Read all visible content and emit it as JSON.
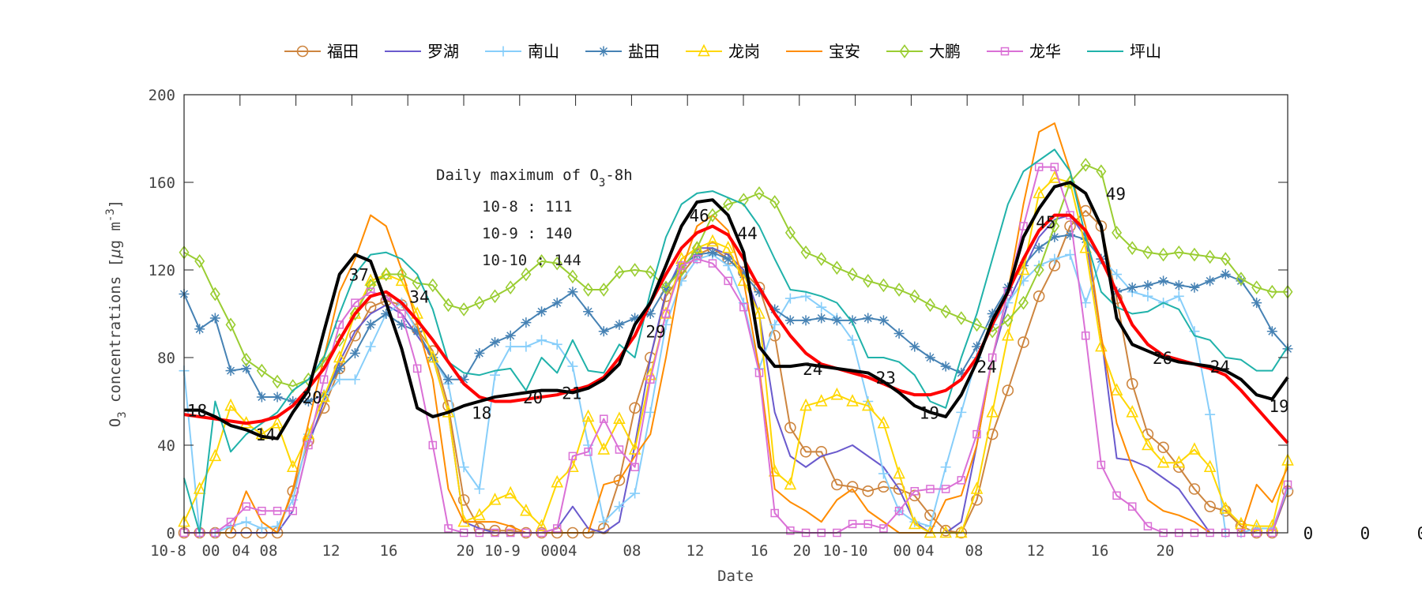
{
  "chart_data": {
    "type": "line",
    "xlabel": "Date",
    "ylabel": {
      "main": "O",
      "sub": "3",
      "rest": " concentrations [",
      "mu": "μ",
      "unit": "g m",
      "sup": "-3",
      "close": "]"
    },
    "ylim": [
      0,
      200
    ],
    "yticks": [
      "0",
      "40",
      "80",
      "120",
      "160",
      "200"
    ],
    "xtick_labels": [
      "10-8",
      "00",
      "04",
      "08",
      "12",
      "16",
      "20",
      "10-9",
      "00",
      "04",
      "08",
      "12",
      "16",
      "20",
      "10-10",
      "00",
      "04",
      "08",
      "12",
      "16",
      "20"
    ],
    "extra_right_labels": [
      "0",
      "0",
      "0"
    ],
    "x_start": "10-8 00",
    "x_step_hours": 1,
    "grid": false,
    "legend_placement": "top-outside",
    "annotation": {
      "title_pre": "Daily maximum of O",
      "title_sub": "3",
      "title_post": "-8h",
      "lines": [
        "10-8 : 111",
        "10-9 : 140",
        "10-10 : 144"
      ]
    },
    "series": [
      {
        "name": "福田",
        "color": "#cd853f",
        "marker": "circle",
        "values": [
          0,
          0,
          0,
          0,
          0,
          0,
          0,
          19,
          42,
          57,
          75,
          90,
          103,
          106,
          104,
          93,
          83,
          58,
          15,
          2,
          1,
          1,
          0,
          0,
          0,
          0,
          0,
          2,
          24,
          57,
          80,
          108,
          118,
          127,
          130,
          125,
          119,
          112,
          90,
          48,
          37,
          37,
          22,
          21,
          19,
          21,
          20,
          17,
          8,
          1,
          0,
          15,
          45,
          65,
          87,
          108,
          122,
          140,
          147,
          140,
          107,
          68,
          45,
          39,
          30,
          20,
          12,
          10,
          3,
          0,
          0,
          19
        ]
      },
      {
        "name": "罗湖",
        "color": "#6a5acd",
        "marker": "none",
        "values": [
          0,
          0,
          0,
          0,
          0,
          0,
          0,
          10,
          40,
          60,
          78,
          92,
          100,
          104,
          100,
          90,
          80,
          55,
          5,
          2,
          0,
          0,
          0,
          0,
          2,
          12,
          2,
          0,
          5,
          40,
          80,
          110,
          125,
          130,
          130,
          127,
          120,
          100,
          55,
          35,
          30,
          35,
          37,
          40,
          35,
          30,
          20,
          5,
          0,
          0,
          5,
          40,
          80,
          105,
          120,
          135,
          143,
          145,
          135,
          90,
          34,
          33,
          30,
          25,
          20,
          10,
          0,
          0,
          0,
          0,
          0,
          20
        ]
      },
      {
        "name": "南山",
        "color": "#87cefa",
        "marker": "plus",
        "values": [
          74,
          0,
          0,
          3,
          5,
          2,
          3,
          15,
          45,
          62,
          70,
          70,
          85,
          100,
          105,
          92,
          80,
          68,
          30,
          20,
          72,
          85,
          85,
          88,
          86,
          76,
          40,
          5,
          12,
          18,
          55,
          95,
          115,
          125,
          127,
          122,
          105,
          75,
          95,
          107,
          108,
          103,
          98,
          88,
          60,
          27,
          10,
          5,
          3,
          30,
          55,
          80,
          95,
          105,
          115,
          122,
          125,
          127,
          105,
          125,
          118,
          110,
          108,
          105,
          108,
          92,
          54,
          0,
          0,
          2,
          2,
          20
        ]
      },
      {
        "name": "盐田",
        "color": "#4682b4",
        "marker": "asterisk",
        "values": [
          109,
          93,
          98,
          74,
          75,
          62,
          62,
          60,
          60,
          63,
          75,
          82,
          95,
          100,
          95,
          92,
          80,
          70,
          70,
          82,
          87,
          90,
          96,
          101,
          105,
          110,
          101,
          92,
          95,
          98,
          100,
          112,
          122,
          127,
          128,
          125,
          118,
          110,
          102,
          97,
          97,
          98,
          97,
          97,
          98,
          97,
          91,
          85,
          80,
          76,
          73,
          85,
          100,
          112,
          122,
          130,
          135,
          136,
          134,
          125,
          110,
          112,
          113,
          115,
          113,
          112,
          115,
          118,
          115,
          105,
          92,
          84
        ]
      },
      {
        "name": "龙岗",
        "color": "#ffd700",
        "marker": "triangle",
        "values": [
          5,
          20,
          35,
          58,
          50,
          45,
          50,
          30,
          45,
          62,
          80,
          100,
          115,
          118,
          115,
          100,
          80,
          55,
          5,
          8,
          15,
          18,
          10,
          3,
          23,
          30,
          53,
          38,
          52,
          38,
          72,
          100,
          125,
          130,
          133,
          130,
          115,
          100,
          28,
          22,
          58,
          60,
          63,
          60,
          58,
          50,
          27,
          4,
          0,
          0,
          0,
          20,
          55,
          90,
          120,
          155,
          162,
          160,
          130,
          85,
          65,
          55,
          40,
          32,
          32,
          38,
          30,
          11,
          4,
          3,
          3,
          33
        ]
      },
      {
        "name": "宝安",
        "color": "#ff8c00",
        "marker": "none",
        "values": [
          0,
          0,
          0,
          0,
          19,
          5,
          0,
          20,
          50,
          80,
          110,
          125,
          145,
          140,
          120,
          95,
          70,
          20,
          5,
          5,
          5,
          3,
          0,
          0,
          0,
          0,
          0,
          22,
          24,
          35,
          45,
          80,
          120,
          140,
          145,
          138,
          115,
          75,
          20,
          14,
          10,
          5,
          15,
          20,
          10,
          5,
          0,
          0,
          0,
          15,
          17,
          40,
          80,
          110,
          150,
          183,
          187,
          165,
          140,
          90,
          50,
          30,
          15,
          10,
          8,
          5,
          0,
          0,
          0,
          22,
          14,
          30
        ]
      },
      {
        "name": "大鹏",
        "color": "#9acd32",
        "marker": "diamond",
        "values": [
          128,
          124,
          109,
          95,
          79,
          74,
          69,
          67,
          70,
          78,
          88,
          100,
          113,
          118,
          118,
          114,
          113,
          104,
          102,
          105,
          108,
          112,
          118,
          124,
          123,
          117,
          111,
          111,
          119,
          120,
          119,
          112,
          120,
          130,
          145,
          150,
          152,
          155,
          151,
          137,
          128,
          125,
          121,
          118,
          115,
          113,
          111,
          108,
          104,
          101,
          98,
          95,
          92,
          97,
          105,
          120,
          140,
          160,
          168,
          165,
          137,
          130,
          128,
          127,
          128,
          127,
          126,
          125,
          116,
          112,
          110,
          110
        ]
      },
      {
        "name": "龙华",
        "color": "#da70d6",
        "marker": "square",
        "values": [
          0,
          0,
          0,
          5,
          12,
          10,
          10,
          10,
          40,
          70,
          95,
          105,
          110,
          108,
          100,
          75,
          40,
          2,
          0,
          0,
          0,
          0,
          0,
          0,
          2,
          35,
          37,
          52,
          38,
          30,
          70,
          100,
          122,
          125,
          123,
          115,
          103,
          73,
          9,
          1,
          0,
          0,
          0,
          4,
          4,
          2,
          10,
          19,
          20,
          20,
          24,
          45,
          80,
          110,
          140,
          167,
          167,
          145,
          90,
          31,
          17,
          12,
          3,
          0,
          0,
          0,
          0,
          0,
          0,
          0,
          0,
          22
        ]
      },
      {
        "name": "坪山",
        "color": "#20b2aa",
        "marker": "none",
        "values": [
          25,
          0,
          60,
          37,
          45,
          50,
          55,
          65,
          70,
          80,
          100,
          118,
          127,
          128,
          125,
          118,
          102,
          78,
          73,
          72,
          74,
          75,
          65,
          80,
          73,
          88,
          74,
          73,
          86,
          80,
          110,
          135,
          150,
          155,
          156,
          153,
          150,
          140,
          125,
          111,
          110,
          108,
          105,
          96,
          80,
          80,
          78,
          72,
          60,
          57,
          80,
          100,
          125,
          150,
          165,
          170,
          175,
          165,
          135,
          110,
          103,
          100,
          101,
          105,
          102,
          90,
          88,
          80,
          79,
          74,
          74,
          85
        ]
      },
      {
        "color": "#ff0000",
        "marker": "none",
        "values": [
          54,
          53,
          52,
          51,
          50,
          51,
          53,
          58,
          66,
          75,
          88,
          100,
          108,
          110,
          105,
          97,
          88,
          78,
          68,
          62,
          60,
          60,
          61,
          62,
          63,
          65,
          67,
          71,
          80,
          90,
          105,
          118,
          130,
          137,
          140,
          136,
          125,
          112,
          100,
          90,
          82,
          77,
          75,
          73,
          71,
          68,
          65,
          63,
          63,
          65,
          70,
          80,
          95,
          110,
          125,
          138,
          145,
          145,
          138,
          125,
          110,
          95,
          86,
          81,
          79,
          77,
          75,
          72,
          65,
          57,
          49,
          41
        ]
      },
      {
        "color": "#000000",
        "marker": "none",
        "values": [
          56,
          56,
          53,
          49,
          47,
          44,
          43,
          55,
          65,
          92,
          118,
          127,
          124,
          105,
          84,
          57,
          53,
          55,
          58,
          60,
          62,
          63,
          64,
          65,
          65,
          64,
          66,
          70,
          77,
          95,
          105,
          122,
          140,
          151,
          152,
          145,
          128,
          85,
          76,
          76,
          77,
          76,
          75,
          74,
          73,
          69,
          64,
          58,
          55,
          53,
          63,
          78,
          97,
          110,
          135,
          148,
          158,
          160,
          155,
          140,
          98,
          86,
          83,
          80,
          78,
          77,
          76,
          74,
          70,
          63,
          61,
          71
        ]
      }
    ],
    "point_labels": [
      {
        "text": "18",
        "x": 0.2,
        "y": 56
      },
      {
        "text": "14",
        "x": 4.6,
        "y": 45
      },
      {
        "text": "20",
        "x": 7.6,
        "y": 62
      },
      {
        "text": "37",
        "x": 10.6,
        "y": 118
      },
      {
        "text": "34",
        "x": 14.5,
        "y": 108
      },
      {
        "text": "18",
        "x": 18.5,
        "y": 55
      },
      {
        "text": "20",
        "x": 21.8,
        "y": 62
      },
      {
        "text": "21",
        "x": 24.3,
        "y": 64
      },
      {
        "text": "29",
        "x": 29.7,
        "y": 92
      },
      {
        "text": "46",
        "x": 32.5,
        "y": 145
      },
      {
        "text": "44",
        "x": 35.6,
        "y": 137
      },
      {
        "text": "24",
        "x": 39.8,
        "y": 75
      },
      {
        "text": "23",
        "x": 44.5,
        "y": 71
      },
      {
        "text": "19",
        "x": 47.3,
        "y": 55
      },
      {
        "text": "24",
        "x": 51,
        "y": 76
      },
      {
        "text": "45",
        "x": 54.8,
        "y": 142
      },
      {
        "text": "49",
        "x": 59.3,
        "y": 155
      },
      {
        "text": "26",
        "x": 62.3,
        "y": 80
      },
      {
        "text": "24",
        "x": 66,
        "y": 76
      },
      {
        "text": "19",
        "x": 69.8,
        "y": 58
      }
    ]
  }
}
